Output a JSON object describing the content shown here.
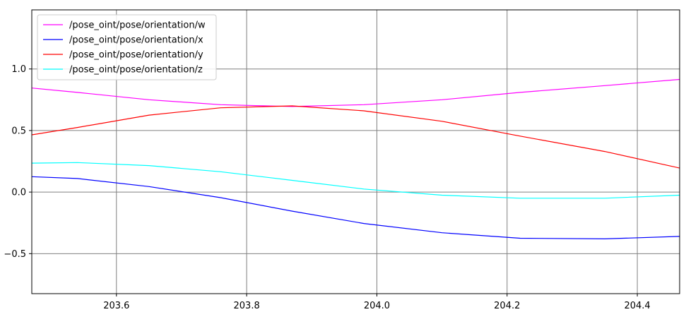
{
  "chart_data": {
    "type": "line",
    "title": "",
    "xlabel": "",
    "ylabel": "",
    "xlim": [
      203.47,
      204.465
    ],
    "ylim": [
      -0.825,
      1.48
    ],
    "grid": true,
    "legend_position": "top-left",
    "x_ticks": [
      203.6,
      203.8,
      204.0,
      204.2,
      204.4
    ],
    "x_tick_labels": [
      "203.6",
      "203.8",
      "204.0",
      "204.2",
      "204.4"
    ],
    "y_ticks": [
      1.0,
      0.5,
      0.0,
      -0.5
    ],
    "y_tick_labels": [
      "1.0",
      "0.5",
      "0.0",
      "−0.5"
    ],
    "series": [
      {
        "name": "/pose_oint/pose/orientation/w",
        "color": "#ff00ff",
        "x": [
          203.47,
          203.54,
          203.65,
          203.76,
          203.87,
          203.98,
          204.1,
          204.22,
          204.35,
          204.465
        ],
        "y": [
          0.845,
          0.81,
          0.75,
          0.71,
          0.695,
          0.71,
          0.75,
          0.81,
          0.865,
          0.915
        ]
      },
      {
        "name": "/pose_oint/pose/orientation/x",
        "color": "#0000ff",
        "x": [
          203.47,
          203.54,
          203.65,
          203.76,
          203.87,
          203.98,
          204.1,
          204.22,
          204.35,
          204.465
        ],
        "y": [
          0.125,
          0.11,
          0.045,
          -0.045,
          -0.155,
          -0.255,
          -0.33,
          -0.375,
          -0.38,
          -0.36
        ]
      },
      {
        "name": "/pose_oint/pose/orientation/y",
        "color": "#ff0000",
        "x": [
          203.47,
          203.54,
          203.65,
          203.76,
          203.87,
          203.98,
          204.1,
          204.22,
          204.35,
          204.465
        ],
        "y": [
          0.465,
          0.525,
          0.625,
          0.685,
          0.7,
          0.66,
          0.575,
          0.455,
          0.33,
          0.195
        ]
      },
      {
        "name": "/pose_oint/pose/orientation/z",
        "color": "#00ffff",
        "x": [
          203.47,
          203.54,
          203.65,
          203.76,
          203.87,
          203.98,
          204.1,
          204.22,
          204.35,
          204.465
        ],
        "y": [
          0.235,
          0.24,
          0.215,
          0.165,
          0.095,
          0.025,
          -0.025,
          -0.05,
          -0.05,
          -0.025
        ]
      }
    ]
  }
}
